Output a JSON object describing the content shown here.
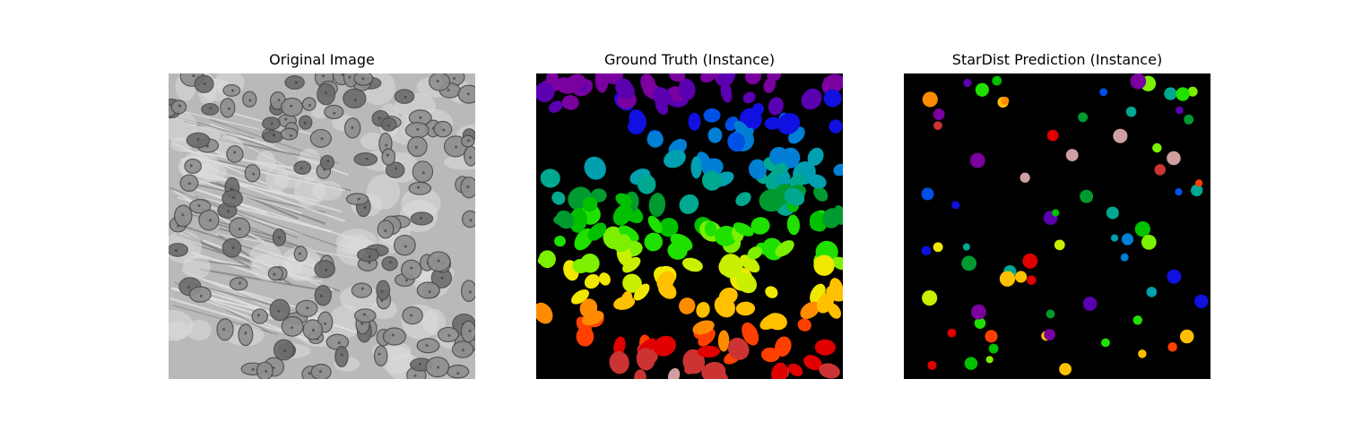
{
  "figure": {
    "panels": [
      {
        "title": "Original Image"
      },
      {
        "title": "Ground Truth (Instance)"
      },
      {
        "title": "StarDist Prediction (Instance)"
      }
    ]
  }
}
